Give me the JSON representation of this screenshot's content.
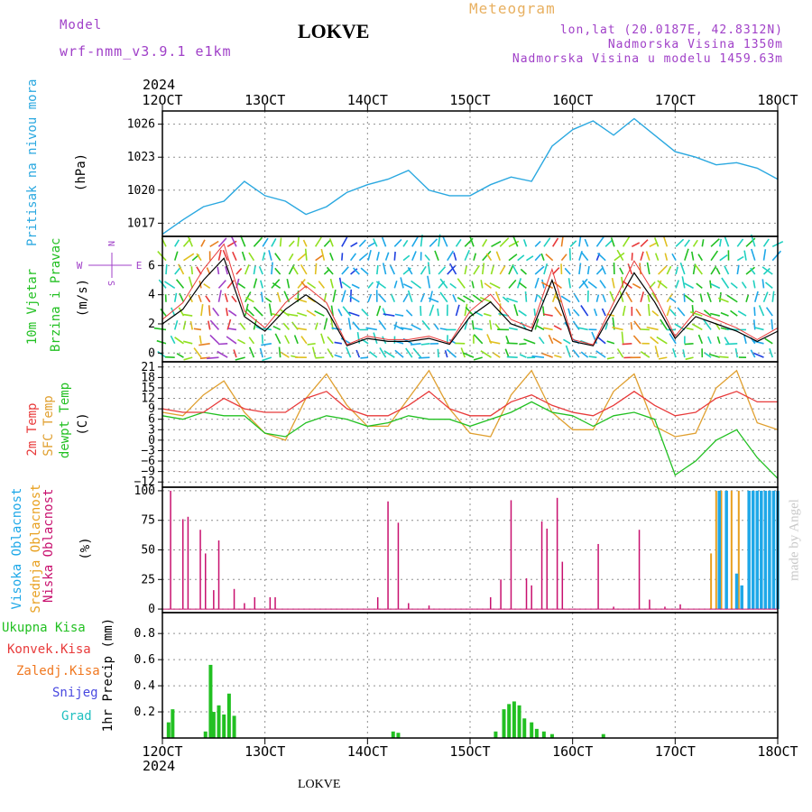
{
  "header": {
    "model_label": "Model",
    "model_value": "wrf-nmm_v3.9.1 e1km",
    "location": "LOKVE",
    "meteogram": "Meteogram",
    "coords": "lon,lat (20.0187E, 42.8312N)",
    "elevation": "Nadmorska Visina 1350m",
    "model_elevation": "Nadmorska Visina u modelu 1459.63m",
    "footer_location": "LOKVE",
    "credit": "made by Angel"
  },
  "colors": {
    "pressure": "#2aa8e0",
    "temp2m": "#e83a3a",
    "sfc": "#e0a030",
    "dewpt": "#22c022",
    "cloud_low": "#c8106e",
    "cloud_mid": "#e8a020",
    "cloud_high": "#1ea8e8",
    "precip_total": "#22c022",
    "purple": "#a040c8"
  },
  "chart_data": [
    {
      "type": "line",
      "panel": "pressure",
      "ylabel_series": "Pritisak na nivou mora",
      "ylabel_unit": "(hPa)",
      "yticks": [
        1017,
        1020,
        1023,
        1026
      ],
      "ylim": [
        1015.8,
        1027.2
      ],
      "x": [
        12.0,
        12.2,
        12.4,
        12.6,
        12.8,
        13.0,
        13.2,
        13.4,
        13.6,
        13.8,
        14.0,
        14.2,
        14.4,
        14.6,
        14.8,
        15.0,
        15.2,
        15.4,
        15.6,
        15.8,
        16.0,
        16.2,
        16.4,
        16.6,
        16.8,
        17.0,
        17.2,
        17.4,
        17.6,
        17.8,
        18.0
      ],
      "series": [
        {
          "values": [
            1016.0,
            1017.3,
            1018.5,
            1019.0,
            1020.8,
            1019.5,
            1019.0,
            1017.8,
            1018.5,
            1019.8,
            1020.5,
            1021.0,
            1021.8,
            1020.0,
            1019.5,
            1019.5,
            1020.5,
            1021.2,
            1020.8,
            1024.0,
            1025.5,
            1026.3,
            1025.0,
            1026.5,
            1025.0,
            1023.5,
            1023.0,
            1022.3,
            1022.5,
            1022.0,
            1021.0
          ]
        }
      ]
    },
    {
      "type": "line",
      "panel": "wind",
      "ylabel_series": "10m Vjetar",
      "ylabel_series2": "Brzina i Pravac",
      "ylabel_unit": "(m/s)",
      "compass_w": "W",
      "compass_e": "E",
      "compass_n": "N",
      "compass_s": "S",
      "yticks": [
        0,
        2,
        4,
        6
      ],
      "ylim": [
        -0.6,
        8.0
      ],
      "x": [
        12.0,
        12.2,
        12.4,
        12.6,
        12.8,
        13.0,
        13.2,
        13.4,
        13.6,
        13.8,
        14.0,
        14.2,
        14.4,
        14.6,
        14.8,
        15.0,
        15.2,
        15.4,
        15.6,
        15.8,
        16.0,
        16.2,
        16.4,
        16.6,
        16.8,
        17.0,
        17.2,
        17.4,
        17.6,
        17.8,
        18.0
      ],
      "series": [
        {
          "values": [
            2.0,
            3.0,
            5.0,
            6.5,
            2.5,
            1.5,
            3.0,
            4.0,
            3.0,
            0.5,
            1.0,
            0.8,
            0.8,
            1.0,
            0.6,
            2.5,
            3.5,
            2.0,
            1.5,
            5.0,
            0.8,
            0.5,
            3.0,
            5.5,
            3.5,
            1.0,
            2.5,
            2.0,
            1.5,
            0.8,
            1.5
          ]
        }
      ]
    },
    {
      "type": "line",
      "panel": "temperature",
      "ylabel_series": "2m Temp",
      "ylabel_series2": "SFC Temp",
      "ylabel_series3": "dewpt Temp",
      "ylabel_unit": "(C)",
      "yticks": [
        -12,
        -9,
        -6,
        -3,
        0,
        3,
        6,
        9,
        12,
        15,
        18,
        21
      ],
      "ylim": [
        -13.5,
        22.5
      ],
      "x": [
        12.0,
        12.2,
        12.4,
        12.6,
        12.8,
        13.0,
        13.2,
        13.4,
        13.6,
        13.8,
        14.0,
        14.2,
        14.4,
        14.6,
        14.8,
        15.0,
        15.2,
        15.4,
        15.6,
        15.8,
        16.0,
        16.2,
        16.4,
        16.6,
        16.8,
        17.0,
        17.2,
        17.4,
        17.6,
        17.8,
        18.0
      ],
      "series": [
        {
          "values": [
            9,
            8,
            8,
            12,
            9,
            8,
            8,
            12,
            14,
            9,
            7,
            7,
            10,
            14,
            9,
            7,
            7,
            11,
            13,
            10,
            8,
            7,
            10,
            14,
            10,
            7,
            8,
            12,
            14,
            11,
            11
          ]
        },
        {
          "values": [
            8,
            7,
            13,
            17,
            8,
            2,
            0,
            12,
            19,
            10,
            4,
            4,
            12,
            20,
            9,
            2,
            1,
            13,
            20,
            8,
            3,
            3,
            14,
            19,
            4,
            1,
            2,
            15,
            20,
            5,
            3
          ]
        },
        {
          "values": [
            7,
            6,
            8,
            7,
            7,
            2,
            1,
            5,
            7,
            6,
            4,
            5,
            7,
            6,
            6,
            4,
            6,
            8,
            11,
            8,
            7,
            4,
            7,
            8,
            6,
            -10,
            -6,
            0,
            3,
            -5,
            -11
          ]
        }
      ]
    },
    {
      "type": "bar",
      "panel": "cloud",
      "ylabel_series": "Visoka Oblacnost",
      "ylabel_series2": "Srednja Oblacnost",
      "ylabel_series3": "Niska Oblacnost",
      "ylabel_unit": "(%)",
      "yticks": [
        0,
        25,
        50,
        75,
        100
      ],
      "ylim": [
        -3,
        103
      ],
      "low": [
        [
          12.08,
          100
        ],
        [
          12.2,
          76
        ],
        [
          12.25,
          78
        ],
        [
          12.37,
          67
        ],
        [
          12.42,
          47
        ],
        [
          12.5,
          16
        ],
        [
          12.55,
          58
        ],
        [
          12.7,
          17
        ],
        [
          12.8,
          5
        ],
        [
          12.9,
          10
        ],
        [
          13.05,
          10
        ],
        [
          13.1,
          10
        ],
        [
          14.1,
          10
        ],
        [
          14.2,
          91
        ],
        [
          14.3,
          73
        ],
        [
          14.4,
          5
        ],
        [
          14.6,
          3
        ],
        [
          15.2,
          10
        ],
        [
          15.3,
          25
        ],
        [
          15.4,
          92
        ],
        [
          15.55,
          26
        ],
        [
          15.6,
          20
        ],
        [
          15.7,
          74
        ],
        [
          15.75,
          68
        ],
        [
          15.85,
          94
        ],
        [
          15.9,
          40
        ],
        [
          16.25,
          55
        ],
        [
          16.4,
          2
        ],
        [
          16.65,
          67
        ],
        [
          16.75,
          8
        ],
        [
          16.9,
          2
        ],
        [
          17.05,
          4
        ]
      ],
      "mid": [
        [
          17.35,
          47
        ],
        [
          17.4,
          100
        ],
        [
          17.45,
          100
        ],
        [
          17.55,
          100
        ],
        [
          17.62,
          100
        ]
      ],
      "high": [
        [
          17.43,
          100
        ],
        [
          17.5,
          100
        ],
        [
          17.6,
          30
        ],
        [
          17.65,
          20
        ],
        [
          17.72,
          100
        ],
        [
          17.76,
          100
        ],
        [
          17.8,
          100
        ],
        [
          17.84,
          100
        ],
        [
          17.88,
          100
        ],
        [
          17.92,
          100
        ],
        [
          17.96,
          100
        ],
        [
          18.0,
          100
        ]
      ]
    },
    {
      "type": "bar",
      "panel": "precip",
      "legend": [
        "Ukupna Kisa",
        "Konvek.Kisa",
        "Zaledj.Kisa",
        "Snijeg",
        "Grad"
      ],
      "ylabel_unit": "1hr Precip (mm)",
      "yticks": [
        0.2,
        0.4,
        0.6,
        0.8
      ],
      "ylim": [
        0,
        0.96
      ],
      "values": [
        [
          12.06,
          0.12
        ],
        [
          12.1,
          0.22
        ],
        [
          12.42,
          0.05
        ],
        [
          12.47,
          0.56
        ],
        [
          12.5,
          0.2
        ],
        [
          12.55,
          0.25
        ],
        [
          12.6,
          0.18
        ],
        [
          12.65,
          0.34
        ],
        [
          12.7,
          0.17
        ],
        [
          14.25,
          0.05
        ],
        [
          14.3,
          0.04
        ],
        [
          15.25,
          0.05
        ],
        [
          15.33,
          0.22
        ],
        [
          15.38,
          0.26
        ],
        [
          15.43,
          0.28
        ],
        [
          15.48,
          0.25
        ],
        [
          15.53,
          0.15
        ],
        [
          15.6,
          0.12
        ],
        [
          15.65,
          0.07
        ],
        [
          15.72,
          0.05
        ],
        [
          15.8,
          0.03
        ],
        [
          16.3,
          0.03
        ]
      ]
    }
  ],
  "x_axis": {
    "labels": [
      "12OCT",
      "13OCT",
      "14OCT",
      "15OCT",
      "16OCT",
      "17OCT",
      "18OCT"
    ],
    "year": "2024"
  }
}
